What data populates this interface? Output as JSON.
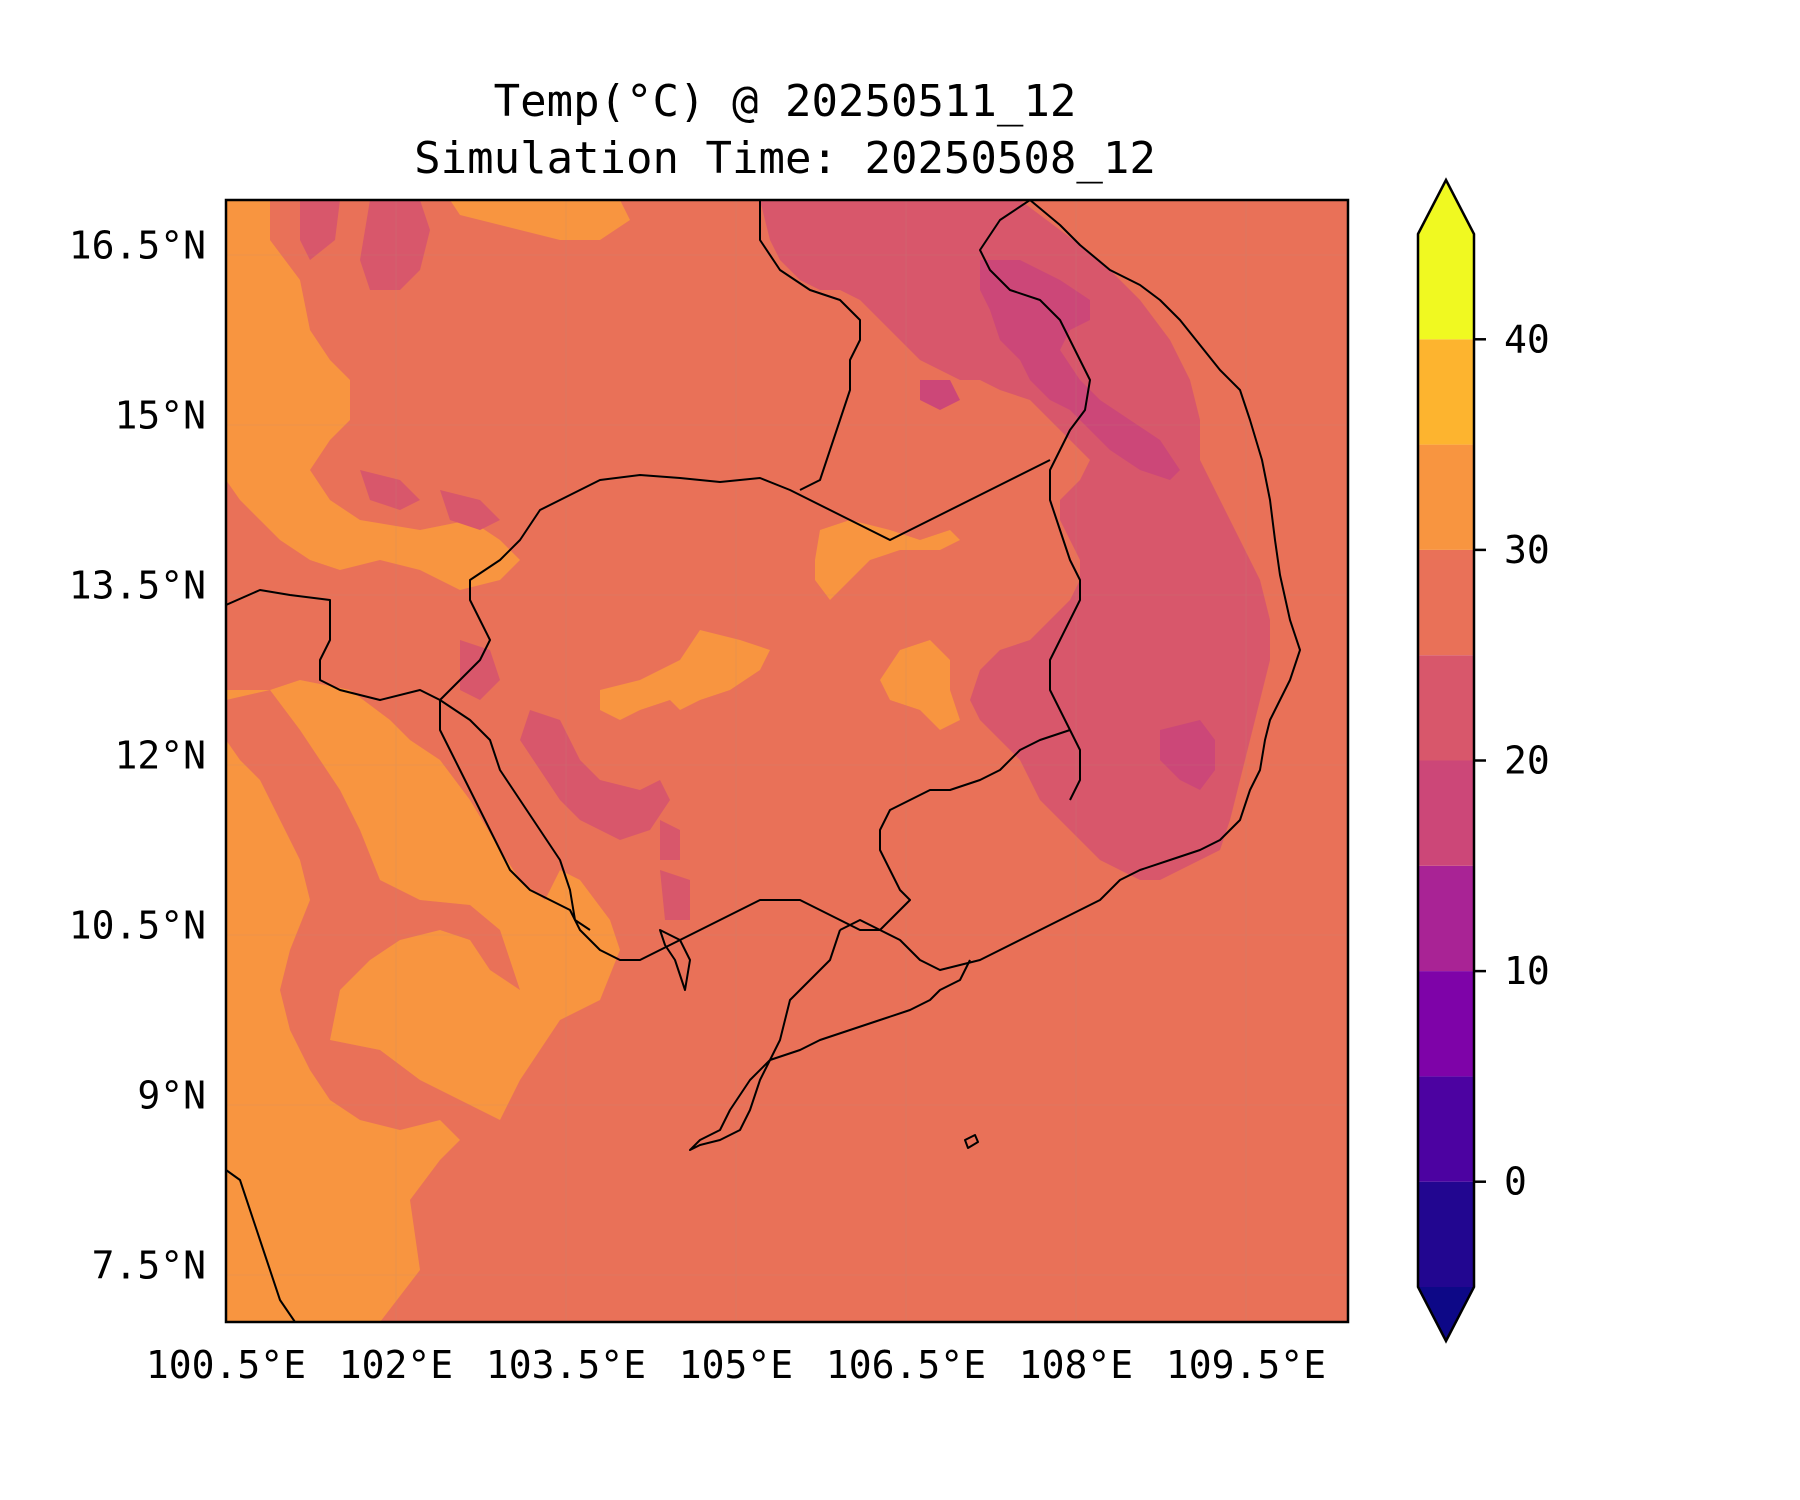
{
  "title_line1": "Temp(°C) @ 20250511_12",
  "title_line2": "Simulation Time: 20250508_12",
  "map": {
    "lon_range": [
      100.5,
      110.4
    ],
    "lat_range": [
      7.0,
      16.9
    ],
    "x_ticks": [
      "100.5°E",
      "102°E",
      "103.5°E",
      "105°E",
      "106.5°E",
      "108°E",
      "109.5°E"
    ],
    "x_tick_values": [
      100.5,
      102,
      103.5,
      105,
      106.5,
      108,
      109.5
    ],
    "y_ticks": [
      "16.5°N",
      "15°N",
      "13.5°N",
      "12°N",
      "10.5°N",
      "9°N",
      "7.5°N"
    ],
    "y_tick_values": [
      16.5,
      15,
      13.5,
      12,
      10.5,
      9,
      7.5
    ],
    "dominant_band": "25-30",
    "warm_region_band": "30-35",
    "cool_region_band": "20-25",
    "coolest_region_band": "15-20",
    "hot_spot_band": "35-40"
  },
  "colorbar": {
    "ticks": [
      "0",
      "10",
      "20",
      "30",
      "40"
    ],
    "tick_values": [
      0,
      10,
      20,
      30,
      40
    ],
    "min": -5,
    "max": 45,
    "bands": [
      {
        "range": [
          -5,
          0
        ],
        "color": "#220690"
      },
      {
        "range": [
          0,
          5
        ],
        "color": "#4c02a1"
      },
      {
        "range": [
          5,
          10
        ],
        "color": "#7e03a8"
      },
      {
        "range": [
          10,
          15
        ],
        "color": "#a92395"
      },
      {
        "range": [
          15,
          20
        ],
        "color": "#cc4778"
      },
      {
        "range": [
          20,
          25
        ],
        "color": "#d8576b"
      },
      {
        "range": [
          25,
          30
        ],
        "color": "#e97158"
      },
      {
        "range": [
          30,
          35
        ],
        "color": "#f89540"
      },
      {
        "range": [
          35,
          40
        ],
        "color": "#fdb42f"
      },
      {
        "range": [
          40,
          45
        ],
        "color": "#f0f921"
      }
    ],
    "under_color": "#0d0887",
    "over_color": "#f0f921"
  }
}
